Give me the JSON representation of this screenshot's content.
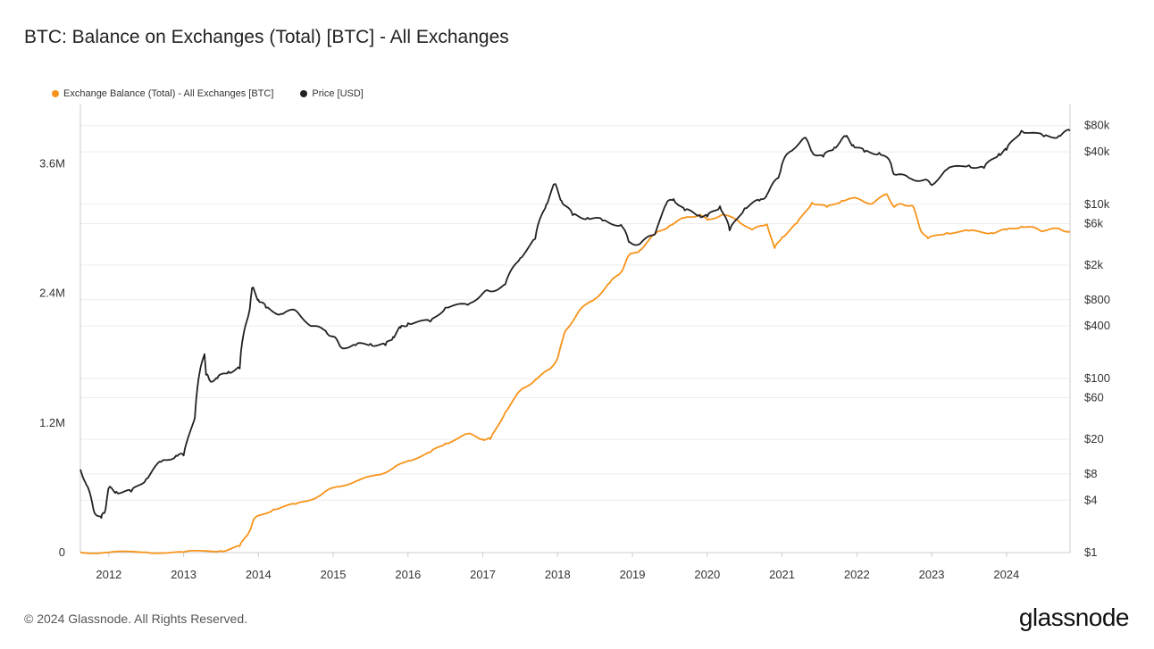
{
  "title": "BTC: Balance on Exchanges (Total) [BTC] - All Exchanges",
  "footer": "© 2024 Glassnode. All Rights Reserved.",
  "logo_text": "glassnode",
  "colors": {
    "balance": "#f7931a",
    "price": "#222222",
    "grid": "#ececec",
    "axis": "#cccccc"
  },
  "chart_data": {
    "type": "line",
    "title": "BTC: Balance on Exchanges (Total) [BTC] - All Exchanges",
    "legend_position": "top-left",
    "grid": true,
    "x_ticks": [
      "2012",
      "2013",
      "2014",
      "2015",
      "2016",
      "2017",
      "2018",
      "2019",
      "2020",
      "2021",
      "2022",
      "2023",
      "2024"
    ],
    "x_range": [
      2011.62,
      2024.85
    ],
    "y_left": {
      "ticks": [
        0,
        1200000,
        2400000,
        3600000
      ],
      "tick_labels": [
        "0",
        "1.2M",
        "2.4M",
        "3.6M"
      ],
      "range": [
        0,
        4150000
      ]
    },
    "y_right": {
      "scale": "log",
      "ticks": [
        1,
        4,
        8,
        20,
        60,
        100,
        400,
        800,
        2000,
        6000,
        10000,
        40000,
        80000
      ],
      "tick_labels": [
        "$1",
        "$4",
        "$8",
        "$20",
        "$60",
        "$100",
        "$400",
        "$800",
        "$2k",
        "$6k",
        "$10k",
        "$40k",
        "$80k"
      ],
      "range": [
        1,
        140000
      ]
    },
    "series": [
      {
        "name": "Exchange Balance (Total) - All Exchanges [BTC]",
        "axis": "left",
        "x": [
          2011.62,
          2012.0,
          2012.5,
          2013.0,
          2013.5,
          2013.75,
          2013.88,
          2013.95,
          2014.2,
          2014.5,
          2014.8,
          2015.0,
          2015.3,
          2015.6,
          2015.8,
          2016.0,
          2016.3,
          2016.5,
          2016.8,
          2017.0,
          2017.1,
          2017.3,
          2017.5,
          2017.7,
          2017.9,
          2018.0,
          2018.1,
          2018.3,
          2018.5,
          2018.7,
          2018.85,
          2018.95,
          2019.1,
          2019.3,
          2019.5,
          2019.7,
          2019.9,
          2020.0,
          2020.2,
          2020.4,
          2020.6,
          2020.8,
          2020.9,
          2021.0,
          2021.2,
          2021.4,
          2021.6,
          2021.8,
          2022.0,
          2022.2,
          2022.4,
          2022.5,
          2022.6,
          2022.75,
          2022.85,
          2022.95,
          2023.2,
          2023.5,
          2023.8,
          2024.0,
          2024.2,
          2024.4,
          2024.5,
          2024.7,
          2024.85
        ],
        "y": [
          2000,
          2000,
          3000,
          5000,
          15000,
          60000,
          200000,
          320000,
          400000,
          450000,
          520000,
          600000,
          660000,
          720000,
          780000,
          850000,
          930000,
          1010000,
          1100000,
          1050000,
          1050000,
          1300000,
          1500000,
          1600000,
          1700000,
          1800000,
          2050000,
          2250000,
          2350000,
          2500000,
          2600000,
          2750000,
          2800000,
          2950000,
          3030000,
          3100000,
          3130000,
          3080000,
          3130000,
          3080000,
          2990000,
          3040000,
          2820000,
          2920000,
          3050000,
          3240000,
          3200000,
          3260000,
          3280000,
          3230000,
          3320000,
          3200000,
          3230000,
          3210000,
          2990000,
          2910000,
          2960000,
          2980000,
          2960000,
          2990000,
          3020000,
          3000000,
          2980000,
          3000000,
          2970000
        ]
      },
      {
        "name": "Price [USD]",
        "axis": "right",
        "x": [
          2011.62,
          2011.7,
          2011.8,
          2011.9,
          2011.95,
          2012.0,
          2012.1,
          2012.3,
          2012.5,
          2012.7,
          2012.9,
          2013.0,
          2013.15,
          2013.28,
          2013.3,
          2013.35,
          2013.45,
          2013.6,
          2013.75,
          2013.88,
          2013.92,
          2014.0,
          2014.1,
          2014.3,
          2014.5,
          2014.7,
          2014.9,
          2015.0,
          2015.1,
          2015.3,
          2015.5,
          2015.7,
          2015.8,
          2015.9,
          2016.0,
          2016.3,
          2016.5,
          2016.8,
          2017.0,
          2017.1,
          2017.3,
          2017.5,
          2017.7,
          2017.85,
          2017.96,
          2018.05,
          2018.2,
          2018.4,
          2018.6,
          2018.85,
          2018.95,
          2019.1,
          2019.3,
          2019.45,
          2019.55,
          2019.7,
          2019.9,
          2020.0,
          2020.17,
          2020.3,
          2020.5,
          2020.7,
          2020.8,
          2020.95,
          2021.0,
          2021.1,
          2021.3,
          2021.4,
          2021.55,
          2021.7,
          2021.85,
          2021.95,
          2022.1,
          2022.3,
          2022.45,
          2022.5,
          2022.7,
          2022.9,
          2023.0,
          2023.2,
          2023.5,
          2023.7,
          2023.9,
          2024.0,
          2024.2,
          2024.5,
          2024.7,
          2024.85
        ],
        "y": [
          9,
          6,
          3,
          2.5,
          3,
          5.5,
          5,
          5,
          7,
          11,
          13,
          13,
          35,
          190,
          110,
          95,
          100,
          120,
          130,
          600,
          1100,
          800,
          650,
          550,
          600,
          400,
          350,
          300,
          230,
          240,
          250,
          240,
          300,
          380,
          430,
          450,
          650,
          700,
          950,
          1000,
          1200,
          2400,
          4000,
          10000,
          17000,
          11000,
          7500,
          7000,
          6500,
          5800,
          3700,
          3500,
          4500,
          10000,
          11500,
          8500,
          7500,
          7200,
          9500,
          5000,
          9000,
          11000,
          13000,
          20000,
          29000,
          40000,
          58000,
          40000,
          35000,
          45000,
          60000,
          48000,
          40000,
          39000,
          30000,
          22000,
          20000,
          19000,
          16600,
          25000,
          28000,
          26000,
          38000,
          42000,
          70000,
          60000,
          61000,
          70000
        ]
      }
    ]
  }
}
